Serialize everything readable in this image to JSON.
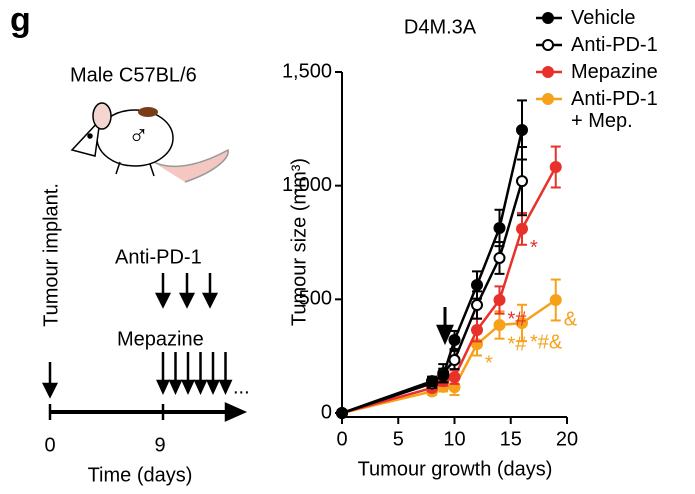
{
  "panel_label": "g",
  "schematic": {
    "strain": "Male C57BL/6",
    "symbol": "♂",
    "implant": "Tumour implant.",
    "drug1": "Anti-PD-1",
    "drug2": "Mepazine",
    "continuation": "...",
    "day0": "0",
    "day9": "9",
    "time_label": "Time (days)"
  },
  "chart_data": {
    "type": "line",
    "title": "D4M.3A",
    "xlabel": "Tumour growth (days)",
    "ylabel": "Tumour size (mm³)",
    "xlim": [
      0,
      20
    ],
    "xticks": [
      0,
      5,
      10,
      15,
      20
    ],
    "ylim": [
      0,
      1500
    ],
    "yticks": [
      0,
      500,
      {
        "value": 1000,
        "label": "1,000"
      },
      {
        "value": 1500,
        "label": "1,500"
      }
    ],
    "legend": "top-right",
    "series": [
      {
        "name": "Vehicle",
        "color": "#000000",
        "marker": "filled",
        "x": [
          0,
          8,
          9,
          10,
          12,
          14,
          16
        ],
        "values": [
          0,
          140,
          165,
          321,
          563,
          814,
          1245
        ],
        "errors": [
          null,
          20,
          30,
          40,
          60,
          80,
          130
        ],
        "annotations": [
          null,
          null,
          null,
          null,
          null,
          null,
          null
        ]
      },
      {
        "name": "Anti-PD-1",
        "color": "#000000",
        "marker": "open",
        "x": [
          0,
          8,
          9,
          10,
          12,
          14,
          16
        ],
        "values": [
          0,
          130,
          175,
          233,
          475,
          682,
          1020
        ],
        "errors": [
          null,
          20,
          40,
          40,
          60,
          70,
          150
        ],
        "annotations": [
          null,
          null,
          null,
          null,
          null,
          null,
          null
        ]
      },
      {
        "name": "Mepazine",
        "color": "#e8312a",
        "marker": "filled",
        "x": [
          0,
          8,
          9,
          10,
          12,
          14,
          16,
          19
        ],
        "values": [
          0,
          110,
          140,
          158,
          365,
          497,
          810,
          1082
        ],
        "errors": [
          null,
          15,
          20,
          30,
          50,
          60,
          70,
          90
        ],
        "annotations": [
          null,
          null,
          null,
          null,
          null,
          "*#",
          "*",
          null
        ]
      },
      {
        "name": "Anti-PD-1 + Mep.",
        "color": "#f7a11a",
        "marker": "filled",
        "x": [
          0,
          8,
          9,
          10,
          12,
          14,
          16,
          19
        ],
        "values": [
          0,
          95,
          115,
          114,
          303,
          387,
          396,
          497
        ],
        "errors": [
          null,
          15,
          20,
          35,
          50,
          60,
          80,
          90
        ],
        "annotations": [
          null,
          null,
          null,
          null,
          "*",
          "*#",
          "*#&",
          "&"
        ]
      }
    ]
  }
}
